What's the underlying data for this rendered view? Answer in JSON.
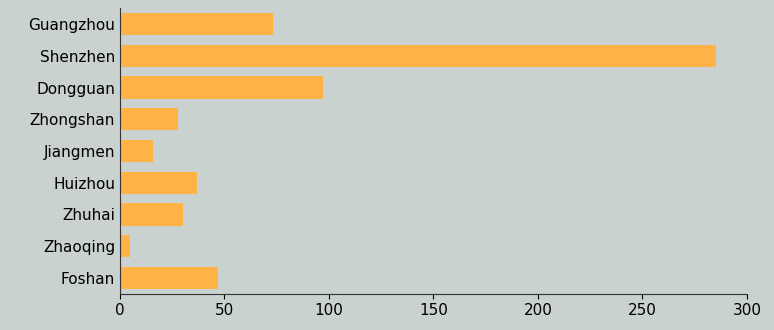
{
  "chart_data": {
    "type": "bar",
    "orientation": "horizontal",
    "categories": [
      "Guangzhou",
      "Shenzhen",
      "Dongguan",
      "Zhongshan",
      "Jiangmen",
      "Huizhou",
      "Zhuhai",
      "Zhaoqing",
      "Foshan"
    ],
    "values": [
      73,
      285,
      97,
      28,
      16,
      37,
      30,
      5,
      47
    ],
    "color": "#ffb347",
    "xlim": [
      0,
      300
    ],
    "xticks": [
      0,
      50,
      100,
      150,
      200,
      250,
      300
    ],
    "grid": false
  }
}
